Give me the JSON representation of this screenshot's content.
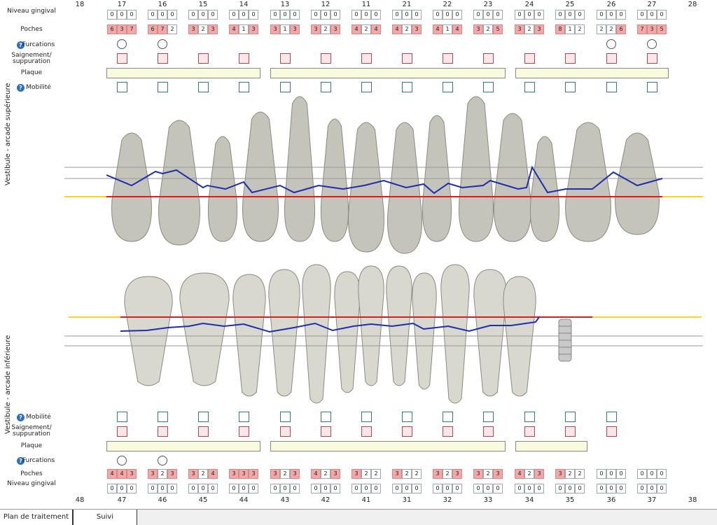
{
  "upper": {
    "teeth": [
      "18",
      "17",
      "16",
      "15",
      "14",
      "13",
      "12",
      "11",
      "21",
      "22",
      "23",
      "24",
      "25",
      "26",
      "27",
      "28"
    ],
    "niveau_gingival": [
      null,
      [
        "0",
        "0",
        "0"
      ],
      [
        "0",
        "0",
        "0"
      ],
      [
        "0",
        "0",
        "0"
      ],
      [
        "0",
        "0",
        "0"
      ],
      [
        "0",
        "0",
        "0"
      ],
      [
        "0",
        "0",
        "0"
      ],
      [
        "0",
        "0",
        "0"
      ],
      [
        "0",
        "0",
        "0"
      ],
      [
        "0",
        "0",
        "0"
      ],
      [
        "0",
        "0",
        "0"
      ],
      [
        "0",
        "0",
        "0"
      ],
      [
        "0",
        "0",
        "0"
      ],
      [
        "0",
        "0",
        "0"
      ],
      [
        "0",
        "0",
        "0"
      ],
      null
    ],
    "poches": [
      null,
      [
        "6",
        "3",
        "7"
      ],
      [
        "6",
        "7",
        "2"
      ],
      [
        "3",
        "2",
        "3"
      ],
      [
        "4",
        "1",
        "3"
      ],
      [
        "3",
        "1",
        "3"
      ],
      [
        "3",
        "2",
        "3"
      ],
      [
        "4",
        "2",
        "4"
      ],
      [
        "4",
        "2",
        "3"
      ],
      [
        "4",
        "1",
        "4"
      ],
      [
        "3",
        "2",
        "5"
      ],
      [
        "3",
        "2",
        "3"
      ],
      [
        "8",
        "1",
        "2"
      ],
      [
        "2",
        "2",
        "6"
      ],
      [
        "7",
        "3",
        "5"
      ],
      null
    ],
    "labels": {
      "niveau": "Niveau gingival",
      "poches": "Poches",
      "furcations": "Furcations",
      "saignement": "Saignement/ suppuration",
      "plaque": "Plaque",
      "mobilite": "Mobilité"
    },
    "side_label": "Vestibule - arcade supérieure"
  },
  "lower": {
    "teeth": [
      "48",
      "47",
      "46",
      "45",
      "44",
      "43",
      "42",
      "41",
      "31",
      "32",
      "33",
      "34",
      "35",
      "36",
      "37",
      "38"
    ],
    "niveau_gingival": [
      null,
      [
        "0",
        "0",
        "0"
      ],
      [
        "0",
        "0",
        "0"
      ],
      [
        "0",
        "0",
        "0"
      ],
      [
        "0",
        "0",
        "0"
      ],
      [
        "0",
        "0",
        "0"
      ],
      [
        "0",
        "0",
        "0"
      ],
      [
        "0",
        "0",
        "0"
      ],
      [
        "0",
        "0",
        "0"
      ],
      [
        "0",
        "0",
        "0"
      ],
      [
        "0",
        "0",
        "0"
      ],
      [
        "0",
        "0",
        "0"
      ],
      [
        "0",
        "0",
        "0"
      ],
      [
        "0",
        "0",
        "0"
      ],
      [
        "0",
        "0",
        "0"
      ],
      null
    ],
    "poches": [
      null,
      [
        "4",
        "4",
        "3"
      ],
      [
        "3",
        "2",
        "3"
      ],
      [
        "3",
        "2",
        "4"
      ],
      [
        "3",
        "3",
        "3"
      ],
      [
        "3",
        "2",
        "3"
      ],
      [
        "4",
        "2",
        "3"
      ],
      [
        "3",
        "2",
        "2"
      ],
      [
        "3",
        "2",
        "2"
      ],
      [
        "3",
        "2",
        "3"
      ],
      [
        "3",
        "2",
        "3"
      ],
      [
        "4",
        "2",
        "3"
      ],
      [
        "3",
        "2",
        "2"
      ],
      [
        "0",
        "0",
        "0"
      ],
      [
        "0",
        "0",
        "0"
      ],
      null
    ],
    "labels": {
      "mobilite": "Mobilité",
      "saignement": "Saignement/ suppuration",
      "plaque": "Plaque",
      "furcations": "Furcations",
      "poches": "Poches",
      "niveau": "Niveau gingival"
    },
    "side_label": "Vestibule - arcade inférieure"
  },
  "tabs": [
    "Plan de traitement",
    "Suivi"
  ],
  "colors": {
    "gum_line": "#1f2db0",
    "bone_line": "#d42020",
    "ref_line": "#f2d72a",
    "pocket_high": "#f3a7a7"
  }
}
